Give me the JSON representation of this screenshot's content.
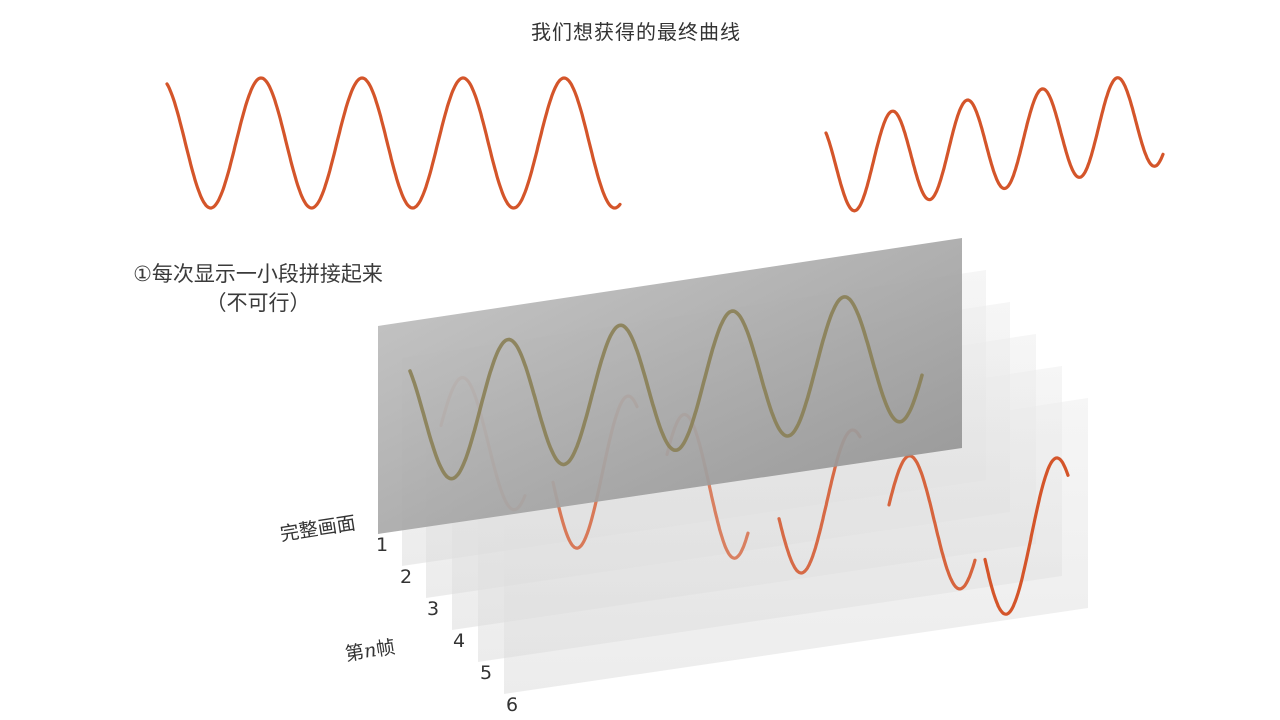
{
  "title": "我们想获得的最终曲线",
  "method_label": {
    "line1": "①每次显示一小段拼接起来",
    "line2": "（不可行）"
  },
  "full_frame_label": "完整画面",
  "nth_frame_label": {
    "prefix": "第",
    "var": "n",
    "suffix": "帧"
  },
  "frame_numbers": [
    "1",
    "2",
    "3",
    "4",
    "5",
    "6"
  ],
  "colors": {
    "curve": "#d4552a",
    "curve_dim": "#8a7f55",
    "full_frame": "#9a9a9a",
    "frame_layer": "#e6e6e6"
  }
}
